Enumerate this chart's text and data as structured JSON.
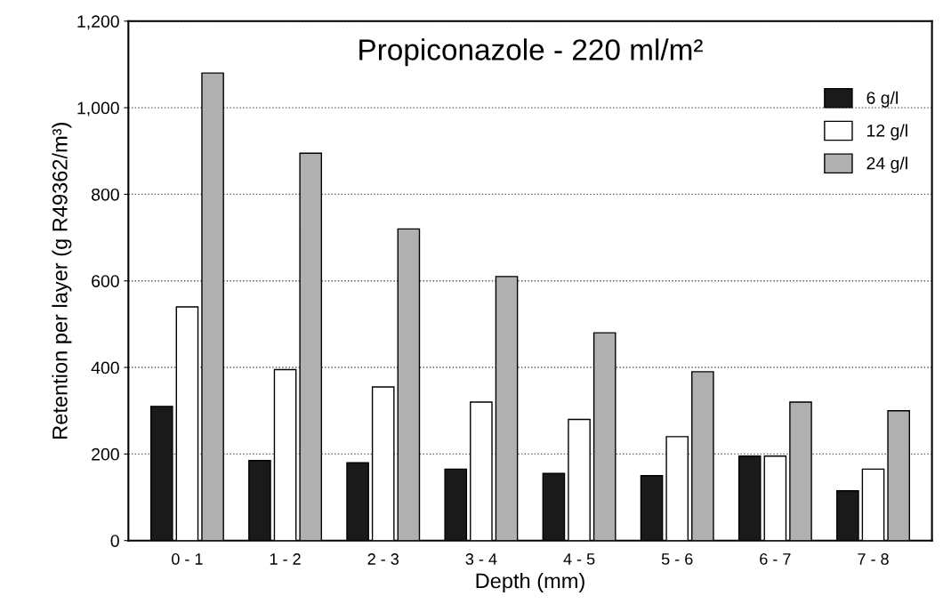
{
  "chart_data": {
    "type": "bar",
    "title": "Propiconazole - 220 ml/m²",
    "xlabel": "Depth (mm)",
    "ylabel": "Retention per layer (g R49362/m³)",
    "categories": [
      "0 - 1",
      "1 - 2",
      "2 - 3",
      "3 - 4",
      "4 - 5",
      "5 - 6",
      "6 - 7",
      "7 - 8"
    ],
    "series": [
      {
        "name": "6 g/l",
        "color": "#1a1a1a",
        "values": [
          310,
          185,
          180,
          165,
          155,
          150,
          195,
          115
        ]
      },
      {
        "name": "12 g/l",
        "color": "#ffffff",
        "values": [
          540,
          395,
          355,
          320,
          280,
          240,
          195,
          165
        ]
      },
      {
        "name": "24 g/l",
        "color": "#b0b0b0",
        "values": [
          1080,
          895,
          720,
          610,
          480,
          390,
          320,
          300
        ]
      }
    ],
    "ylim": [
      0,
      1200
    ],
    "yticks": [
      0,
      200,
      400,
      600,
      800,
      {
        "value": 1000,
        "label": "1,000"
      },
      {
        "value": 1200,
        "label": "1,200"
      }
    ],
    "grid": "y",
    "legend": "top right"
  }
}
